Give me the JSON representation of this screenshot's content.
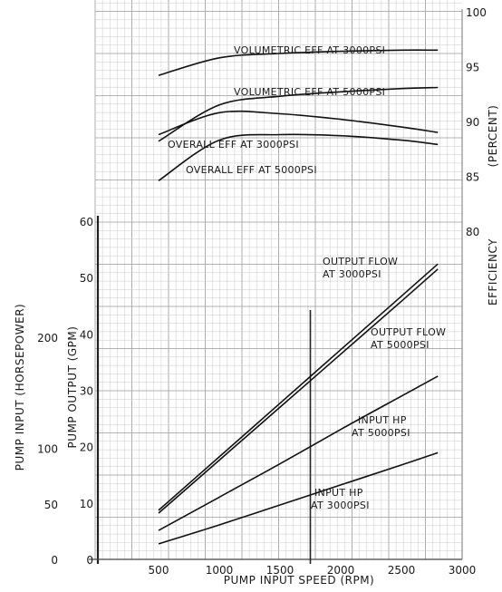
{
  "chart_data": {
    "type": "line",
    "x": [
      500,
      1000,
      1500,
      2000,
      2500,
      2800
    ],
    "xlabel": "PUMP INPUT SPEED (RPM)",
    "xticks": [
      "500",
      "1000",
      "1500",
      "2000",
      "2500",
      "3000"
    ],
    "xlim": [
      500,
      3000
    ],
    "axes": {
      "efficiency": {
        "label_line1": "EFFICIENCY",
        "label_line2": "(PERCENT)",
        "ticks": [
          "100",
          "95",
          "90",
          "85",
          "80"
        ],
        "range": [
          80,
          100
        ]
      },
      "pump_output": {
        "label": "PUMP OUTPUT (GPM)",
        "ticks": [
          "0",
          "10",
          "20",
          "30",
          "40",
          "50",
          "60"
        ],
        "range": [
          0,
          60
        ]
      },
      "pump_input": {
        "label": "PUMP INPUT (HORSEPOWER)",
        "ticks": [
          "0",
          "50",
          "100",
          "200"
        ],
        "range": [
          0,
          200
        ]
      }
    },
    "series": [
      {
        "label": "VOLUMETRIC EFF AT 3000PSI",
        "axis": "efficiency",
        "values": [
          94.2,
          95.8,
          96.2,
          96.4,
          96.5,
          96.5
        ]
      },
      {
        "label": "VOLUMETRIC EFF AT 5000PSI",
        "axis": "efficiency",
        "values": [
          88.2,
          91.5,
          92.3,
          92.7,
          93.0,
          93.1
        ]
      },
      {
        "label": "OVERALL EFF AT 3000PSI",
        "axis": "efficiency",
        "values": [
          88.8,
          90.8,
          90.7,
          90.2,
          89.5,
          89.0
        ]
      },
      {
        "label": "OVERALL EFF AT 5000PSI",
        "axis": "efficiency",
        "values": [
          84.6,
          88.3,
          88.8,
          88.7,
          88.3,
          87.9
        ]
      },
      {
        "label_line1": "OUTPUT FLOW",
        "label_line2": "AT 3000PSI",
        "axis": "pump_output",
        "values": [
          8.7,
          18.2,
          27.7,
          37.2,
          46.7,
          52.4
        ]
      },
      {
        "label_line1": "OUTPUT FLOW",
        "label_line2": "AT 5000PSI",
        "axis": "pump_output",
        "values": [
          8.2,
          17.6,
          27.0,
          36.4,
          45.8,
          51.5
        ]
      },
      {
        "label_line1": "INPUT HP",
        "label_line2": "AT 5000PSI",
        "axis": "pump_input",
        "values": [
          26,
          56,
          86,
          117,
          147,
          165
        ]
      },
      {
        "label_line1": "INPUT HP",
        "label_line2": "AT 3000PSI",
        "axis": "pump_input",
        "values": [
          14,
          31,
          49,
          67,
          85,
          96
        ]
      }
    ],
    "reference_x": 1750,
    "grid": true
  }
}
